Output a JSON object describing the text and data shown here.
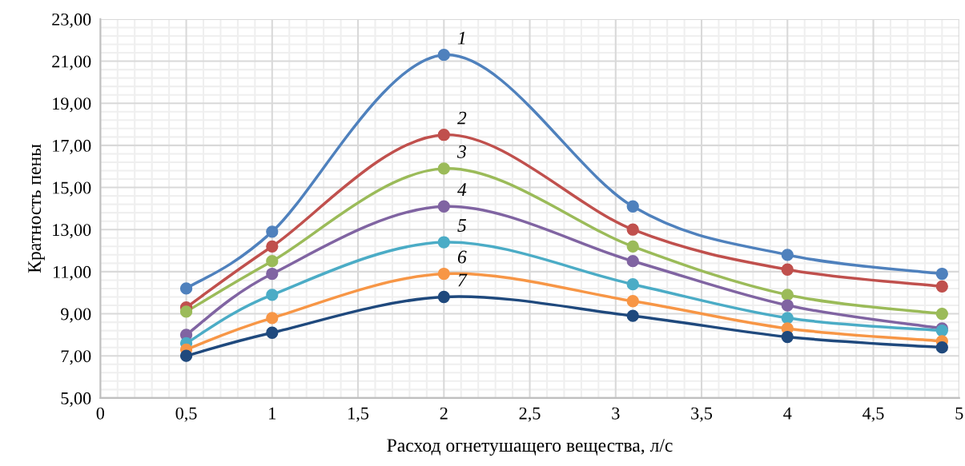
{
  "chart_data": {
    "type": "line",
    "xlabel": "Расход огнетушащего вещества, л/с",
    "ylabel": "Кратность пены",
    "x": [
      0.5,
      1,
      2,
      3.1,
      4,
      4.9
    ],
    "series": [
      {
        "color": "#4f81bd",
        "values": [
          10.2,
          12.9,
          21.3,
          14.1,
          11.8,
          10.9
        ]
      },
      {
        "color": "#c0504d",
        "values": [
          9.3,
          12.2,
          17.5,
          13.0,
          11.1,
          10.3
        ]
      },
      {
        "color": "#9bbb59",
        "values": [
          9.1,
          11.5,
          15.9,
          12.2,
          9.9,
          9.0
        ]
      },
      {
        "color": "#8064a2",
        "values": [
          8.0,
          10.9,
          14.1,
          11.5,
          9.4,
          8.3
        ]
      },
      {
        "color": "#4bacc6",
        "values": [
          7.6,
          9.9,
          12.4,
          10.4,
          8.8,
          8.2
        ]
      },
      {
        "color": "#f79646",
        "values": [
          7.3,
          8.8,
          10.9,
          9.6,
          8.3,
          7.7
        ]
      },
      {
        "color": "#1f497d",
        "values": [
          7.0,
          8.1,
          9.8,
          8.9,
          7.9,
          7.4
        ]
      }
    ],
    "annotations": [
      "1",
      "2",
      "3",
      "4",
      "5",
      "6",
      "7"
    ],
    "xlim": [
      0,
      5
    ],
    "ylim": [
      5,
      23
    ],
    "xticks": [
      0,
      {
        "value": 0.5,
        "label": "0,5"
      },
      1,
      {
        "value": 1.5,
        "label": "1,5"
      },
      2,
      {
        "value": 2.5,
        "label": "2,5"
      },
      3,
      {
        "value": 3.5,
        "label": "3,5"
      },
      4,
      {
        "value": 4.5,
        "label": "4,5"
      },
      5
    ],
    "yticks": [
      {
        "value": 5,
        "label": "5,00"
      },
      {
        "value": 7,
        "label": "7,00"
      },
      {
        "value": 9,
        "label": "9,00"
      },
      {
        "value": 11,
        "label": "11,00"
      },
      {
        "value": 13,
        "label": "13,00"
      },
      {
        "value": 15,
        "label": "15,00"
      },
      {
        "value": 17,
        "label": "17,00"
      },
      {
        "value": 19,
        "label": "19,00"
      },
      {
        "value": 21,
        "label": "21,00"
      },
      {
        "value": 23,
        "label": "23,00"
      }
    ],
    "grid": true,
    "marker": "circle",
    "line_style": "solid"
  }
}
